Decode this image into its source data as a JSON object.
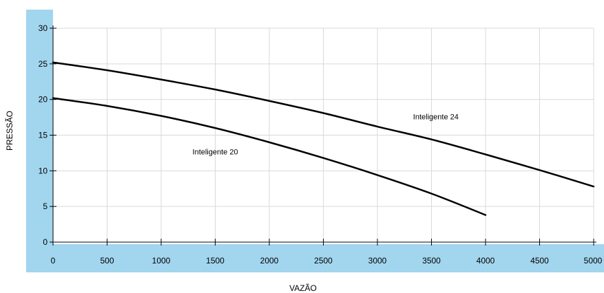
{
  "chart_data": {
    "type": "line",
    "title": "",
    "xlabel": "VAZÃO",
    "ylabel": "PRESSÃO",
    "xlim": [
      0,
      5000
    ],
    "ylim": [
      0,
      30
    ],
    "xticks": [
      0,
      500,
      1000,
      1500,
      2000,
      2500,
      3000,
      3500,
      4000,
      4500,
      5000
    ],
    "yticks": [
      0,
      5,
      10,
      15,
      20,
      25,
      30
    ],
    "grid": true,
    "legend": "none",
    "axis_band_color": "#a2d5ee",
    "series": [
      {
        "name": "Inteligente 24",
        "color": "#000000",
        "x": [
          0,
          500,
          1000,
          1500,
          2000,
          2500,
          3000,
          3500,
          4000,
          4500,
          5000
        ],
        "y": [
          25.2,
          24.1,
          22.8,
          21.4,
          19.8,
          18.1,
          16.2,
          14.4,
          12.3,
          10.1,
          7.8
        ]
      },
      {
        "name": "Inteligente 20",
        "color": "#000000",
        "x": [
          0,
          500,
          1000,
          1500,
          2000,
          2500,
          3000,
          3500,
          4000
        ],
        "y": [
          20.2,
          19.1,
          17.7,
          16.0,
          14.0,
          11.8,
          9.4,
          6.8,
          3.8
        ]
      }
    ],
    "annotations": [
      {
        "text": "Inteligente 24",
        "series": 0,
        "x": 3330,
        "y": 17.2
      },
      {
        "text": "Inteligente 20",
        "series": 1,
        "x": 1290,
        "y": 12.3
      }
    ]
  }
}
